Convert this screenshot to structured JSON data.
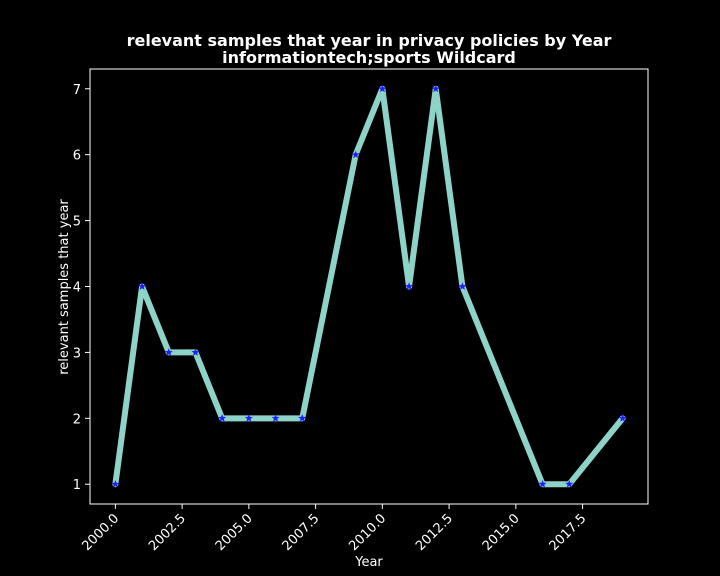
{
  "colors": {
    "background": "#000000",
    "axes": "#ffffff",
    "line": "#8dd3c7",
    "marker": "#1f1fff"
  },
  "chart_data": {
    "type": "line",
    "title_line1": "relevant samples that year in privacy policies by Year",
    "title_line2": "informationtech;sports Wildcard",
    "xlabel": "Year",
    "ylabel": "relevant samples that year",
    "x": [
      2000,
      2001,
      2002,
      2003,
      2004,
      2005,
      2006,
      2007,
      2009,
      2010,
      2011,
      2012,
      2013,
      2016,
      2017,
      2019
    ],
    "y": [
      1,
      4,
      3,
      3,
      2,
      2,
      2,
      2,
      6,
      7,
      4,
      7,
      4,
      1,
      1,
      2
    ],
    "xlim": [
      1999.05,
      2019.95
    ],
    "ylim": [
      0.7,
      7.3
    ],
    "xticks": [
      2000.0,
      2002.5,
      2005.0,
      2007.5,
      2010.0,
      2012.5,
      2015.0,
      2017.5
    ],
    "xtick_labels": [
      "2000.0",
      "2002.5",
      "2005.0",
      "2007.5",
      "2010.0",
      "2012.5",
      "2015.0",
      "2017.5"
    ],
    "yticks": [
      1,
      2,
      3,
      4,
      5,
      6,
      7
    ],
    "ytick_labels": [
      "1",
      "2",
      "3",
      "4",
      "5",
      "6",
      "7"
    ],
    "marker": "star",
    "grid": false,
    "legend": false
  }
}
